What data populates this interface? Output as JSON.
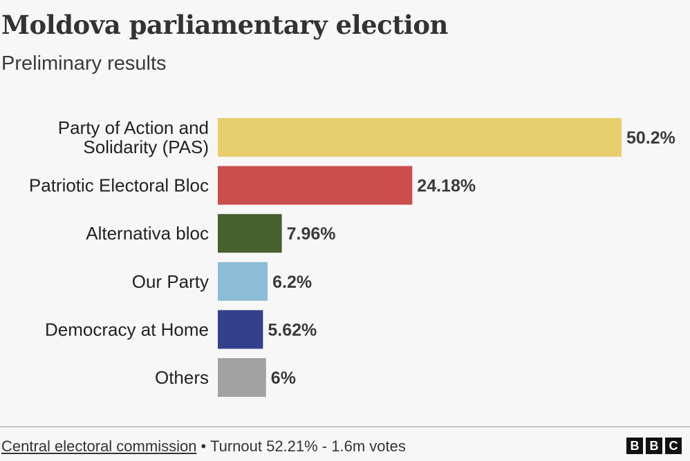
{
  "title": "Moldova parliamentary election",
  "subtitle": "Preliminary results",
  "footer": {
    "source": "Central electoral commission",
    "separator": " • ",
    "turnout": "Turnout 52.21% - 1.6m votes"
  },
  "logo": [
    "B",
    "B",
    "C"
  ],
  "chart_data": {
    "type": "bar",
    "orientation": "horizontal",
    "title": "Moldova parliamentary election",
    "subtitle": "Preliminary results",
    "categories": [
      [
        "Party of Action and",
        "Solidarity (PAS)"
      ],
      [
        "Patriotic Electoral Bloc"
      ],
      [
        "Alternativa bloc"
      ],
      [
        "Our Party"
      ],
      [
        "Democracy at Home"
      ],
      [
        "Others"
      ]
    ],
    "values": [
      50.2,
      24.18,
      7.96,
      6.2,
      5.62,
      6
    ],
    "value_labels": [
      "50.2%",
      "24.18%",
      "7.96%",
      "6.2%",
      "5.62%",
      "6%"
    ],
    "colors": [
      "#e8cf6e",
      "#cb4e4d",
      "#46602e",
      "#8bbdd7",
      "#343f8b",
      "#a2a2a2"
    ],
    "xlabel": "",
    "ylabel": "",
    "grid": false,
    "legend": "none"
  }
}
